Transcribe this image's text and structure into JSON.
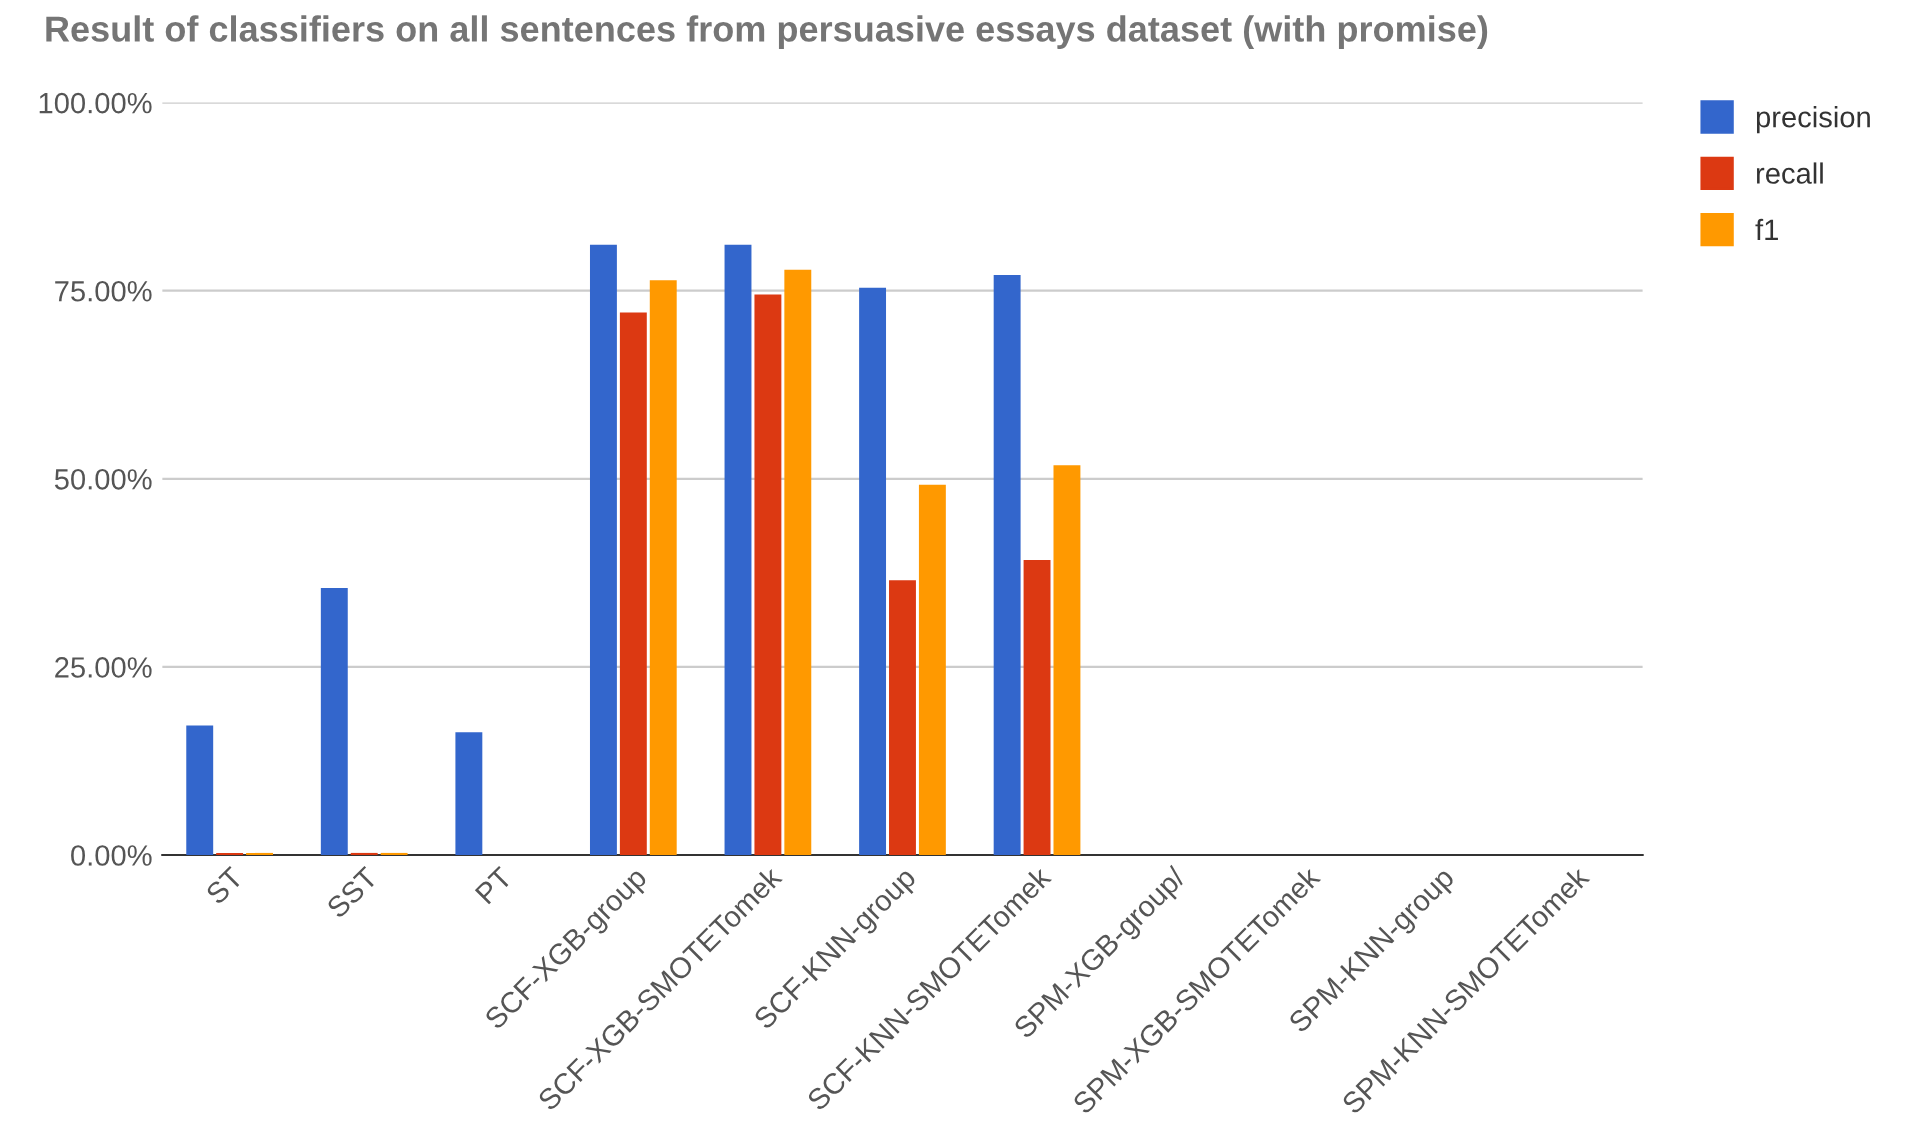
{
  "chart_data": {
    "type": "bar",
    "title": "Result of classifiers on all sentences from persuasive essays dataset (with promise)",
    "categories": [
      "ST",
      "SST",
      "PT",
      "SCF-XGB-group",
      "SCF-XGB-SMOTETomek",
      "SCF-KNN-group",
      "SCF-KNN-SMOTETomek",
      "SPM-XGB-group/",
      "SPM-XGB-SMOTETomek",
      "SPM-KNN-group",
      "SPM-KNN-SMOTETomek"
    ],
    "series": [
      {
        "name": "precision",
        "color": "#3366cc",
        "values": [
          17.2,
          35.5,
          16.3,
          81.1,
          81.1,
          75.4,
          77.1,
          null,
          null,
          null,
          null
        ]
      },
      {
        "name": "recall",
        "color": "#dc3912",
        "values": [
          0,
          0,
          null,
          72.1,
          74.5,
          36.5,
          39.2,
          null,
          null,
          null,
          null
        ]
      },
      {
        "name": "f1",
        "color": "#ff9900",
        "values": [
          0,
          0,
          null,
          76.4,
          77.8,
          49.2,
          51.8,
          null,
          null,
          null,
          null
        ]
      }
    ],
    "ylim": [
      0,
      100
    ],
    "yticks": [
      {
        "value": 0,
        "label": "0.00%"
      },
      {
        "value": 25,
        "label": "25.00%"
      },
      {
        "value": 50,
        "label": "50.00%"
      },
      {
        "value": 75,
        "label": "75.00%"
      },
      {
        "value": 100,
        "label": "100.00%"
      }
    ],
    "grid": "y",
    "legend": "top right"
  }
}
